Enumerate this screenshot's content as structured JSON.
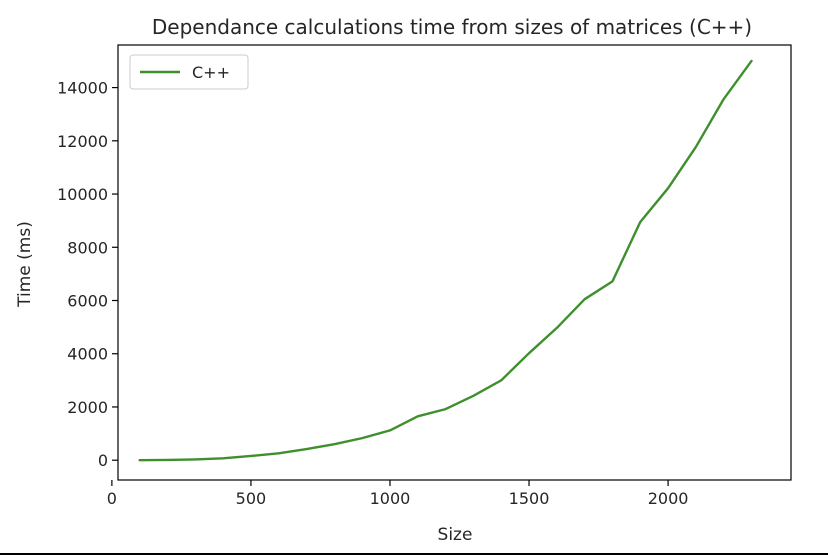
{
  "chart_data": {
    "type": "line",
    "title": "Dependance calculations time from sizes of matrices (C++)",
    "xlabel": "Size",
    "ylabel": "Time (ms)",
    "xlim": [
      22,
      2442
    ],
    "ylim": [
      -744,
      15600
    ],
    "xticks": [
      0,
      500,
      1000,
      1500,
      2000
    ],
    "yticks": [
      0,
      2000,
      4000,
      6000,
      8000,
      10000,
      12000,
      14000
    ],
    "grid": false,
    "legend": {
      "position": "top-left",
      "entries": [
        "C++"
      ]
    },
    "series": [
      {
        "name": "C++",
        "color": "#3f8f2d",
        "x": [
          100,
          200,
          300,
          400,
          500,
          600,
          700,
          800,
          900,
          1000,
          1100,
          1200,
          1300,
          1400,
          1500,
          1600,
          1700,
          1800,
          1900,
          2000,
          2100,
          2200,
          2300
        ],
        "y": [
          0,
          10,
          30,
          70,
          160,
          260,
          420,
          600,
          830,
          1120,
          1650,
          1920,
          2420,
          3000,
          4020,
          4970,
          6050,
          6720,
          8950,
          10220,
          11770,
          13570,
          15000
        ]
      }
    ]
  }
}
